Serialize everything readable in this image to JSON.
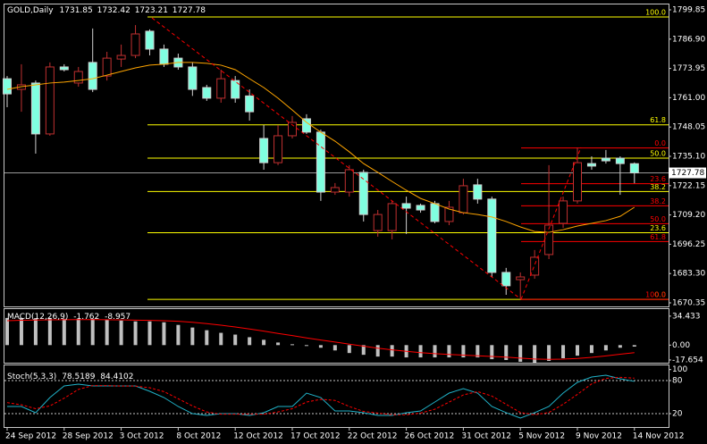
{
  "chart_data": [
    {
      "type": "candlestick",
      "title": "GOLD,Daily",
      "categories": [
        "24 Sep 2012",
        null,
        null,
        null,
        "28 Sep 2012",
        null,
        null,
        null,
        "3 Oct 2012",
        null,
        null,
        null,
        "8 Oct 2012",
        null,
        null,
        null,
        "12 Oct 2012",
        null,
        null,
        null,
        "17 Oct 2012",
        null,
        null,
        null,
        "22 Oct 2012",
        null,
        null,
        null,
        "26 Oct 2012",
        null,
        null,
        null,
        "31 Oct 2012",
        null,
        null,
        null,
        "5 Nov 2012",
        null,
        null,
        null,
        "9 Nov 2012",
        null,
        null,
        null,
        "14 Nov 2012"
      ],
      "open": [
        1769.4,
        1764.7,
        1767.5,
        1745.0,
        1774.6,
        1767.5,
        1776.6,
        1770.6,
        1778.1,
        1779.7,
        1790.4,
        1782.5,
        1778.5,
        1774.6,
        1765.5,
        1760.8,
        1768.6,
        1761.8,
        1743.0,
        1732.3,
        1744.2,
        1751.7,
        1745.8,
        1719.3,
        1719.3,
        1728.0,
        1702.3,
        1702.3,
        1714.2,
        1713.4,
        1714.2,
        1706.3,
        1710.2,
        1722.5,
        1716.2,
        1683.8,
        1680.6,
        1682.6,
        1691.7,
        1705.5,
        1715.4,
        1731.9,
        1734.3,
        1734.3,
        1731.85
      ],
      "high": [
        1770.6,
        1775.8,
        1768.6,
        1776.6,
        1775.8,
        1774.6,
        1791.6,
        1781.3,
        1784.5,
        1793.1,
        1791.2,
        1784.5,
        1780.5,
        1776.6,
        1766.7,
        1773.4,
        1770.6,
        1764.7,
        1748.9,
        1748.9,
        1752.9,
        1753.7,
        1746.9,
        1723.3,
        1731.2,
        1729.2,
        1711.4,
        1715.4,
        1717.3,
        1714.2,
        1715.4,
        1715.4,
        1725.2,
        1725.2,
        1717.3,
        1685.8,
        1683.8,
        1693.7,
        1731.2,
        1717.3,
        1739.0,
        1735.1,
        1737.9,
        1735.1,
        1732.42
      ],
      "low": [
        1756.8,
        1754.8,
        1736.3,
        1744.2,
        1772.6,
        1765.9,
        1763.5,
        1768.6,
        1774.6,
        1778.5,
        1779.7,
        1774.6,
        1773.4,
        1761.8,
        1759.6,
        1758.8,
        1758.8,
        1750.9,
        1729.2,
        1731.2,
        1743.0,
        1745.0,
        1715.4,
        1718.1,
        1717.3,
        1706.3,
        1699.6,
        1698.4,
        1700.8,
        1710.2,
        1705.5,
        1704.7,
        1709.4,
        1714.2,
        1681.8,
        1673.9,
        1671.9,
        1681.0,
        1689.7,
        1703.5,
        1714.2,
        1729.2,
        1731.9,
        1718.1,
        1723.21
      ],
      "close": [
        1762.7,
        1766.7,
        1745.0,
        1774.6,
        1773.4,
        1772.6,
        1764.7,
        1778.5,
        1779.7,
        1789.2,
        1782.5,
        1775.8,
        1774.6,
        1764.7,
        1760.8,
        1769.4,
        1760.8,
        1754.8,
        1732.3,
        1744.2,
        1750.1,
        1745.8,
        1719.3,
        1721.3,
        1729.2,
        1709.4,
        1709.4,
        1714.2,
        1712.2,
        1711.4,
        1706.3,
        1712.6,
        1722.1,
        1716.2,
        1683.8,
        1677.9,
        1681.8,
        1690.5,
        1704.7,
        1715.4,
        1732.3,
        1730.8,
        1733.1,
        1731.9,
        1727.78
      ],
      "up_color": "#000000",
      "up_line": "#c03030",
      "down_color": "#80ffe0",
      "down_line": "#d0d0d0",
      "ma_values": [
        1764.7,
        1765.9,
        1766.7,
        1767.5,
        1767.9,
        1768.6,
        1769.4,
        1771.0,
        1772.6,
        1774.2,
        1775.4,
        1775.8,
        1776.6,
        1776.6,
        1776.2,
        1775.4,
        1773.4,
        1769.4,
        1765.5,
        1760.8,
        1755.6,
        1750.1,
        1745.8,
        1741.8,
        1737.1,
        1731.9,
        1728.0,
        1724.0,
        1720.1,
        1716.5,
        1714.2,
        1711.8,
        1710.2,
        1709.4,
        1708.3,
        1706.3,
        1703.9,
        1701.9,
        1701.5,
        1702.7,
        1704.3,
        1705.5,
        1706.7,
        1708.6,
        1712.6
      ],
      "ma_color": "#ffa500",
      "fibonacci": [
        {
          "color": "#ffff00",
          "high": 1796.7,
          "low": 1671.9,
          "reversed": false,
          "levels": [
            {
              "value": 100,
              "label": "100.0"
            },
            {
              "value": 61.8,
              "label": "61.8"
            },
            {
              "value": 50,
              "label": "50.0"
            },
            {
              "value": 38.2,
              "label": "38.2"
            },
            {
              "value": 23.6,
              "label": "23.6"
            },
            {
              "value": 0,
              "label": "0.0"
            }
          ]
        },
        {
          "color": "#ff0000",
          "high": 1738.8,
          "low": 1671.9,
          "reversed": true,
          "levels": [
            {
              "value": 0,
              "label": "0.0"
            },
            {
              "value": 23.6,
              "label": "23.6"
            },
            {
              "value": 38.2,
              "label": "38.2"
            },
            {
              "value": 50,
              "label": "50.0"
            },
            {
              "value": 61.8,
              "label": "61.8"
            },
            {
              "value": 100,
              "label": "100.0"
            }
          ]
        }
      ],
      "ylim": [
        1668.77,
        1802.22
      ],
      "yticks": [
        1799.85,
        {
          "value": 1786.9,
          "label": "1786.90"
        },
        1773.95,
        {
          "value": 1761,
          "label": "1761.00"
        },
        1748.05,
        {
          "value": 1735.1,
          "label": "1735.10"
        },
        1722.15,
        {
          "value": 1709.2,
          "label": "1709.20"
        },
        1696.25,
        {
          "value": 1683.3,
          "label": "1683.30"
        },
        1670.35
      ]
    },
    {
      "type": "macd",
      "title": "MACD(12,26,9)",
      "values": [
        32.3,
        32.3,
        32.0,
        32.3,
        31.3,
        31.3,
        31.3,
        30.2,
        29.2,
        28.2,
        28.2,
        27.1,
        24.0,
        20.9,
        17.7,
        14.6,
        12.5,
        9.4,
        6.3,
        3.1,
        1.0,
        -1.0,
        -3.1,
        -6.3,
        -9.4,
        -11.5,
        -13.6,
        -13.6,
        -14.6,
        -14.6,
        -14.6,
        -14.6,
        -14.6,
        -14.6,
        -16.7,
        -17.7,
        -19.8,
        -20.9,
        -18.8,
        -15.6,
        -12.5,
        -9.4,
        -6.3,
        -3.1,
        -1.762
      ],
      "color": "#c0c0c0",
      "signal_values": [
        29.0,
        29.5,
        29.8,
        30.0,
        30.2,
        30.3,
        30.3,
        30.2,
        30.0,
        29.7,
        29.4,
        29.0,
        28.3,
        27.2,
        25.6,
        23.7,
        21.6,
        19.2,
        16.6,
        13.9,
        11.3,
        8.6,
        6.1,
        3.7,
        1.1,
        -1.2,
        -3.6,
        -5.6,
        -7.4,
        -8.9,
        -10.2,
        -11.1,
        -11.9,
        -12.7,
        -13.5,
        -14.3,
        -15.4,
        -16.5,
        -16.9,
        -16.6,
        -15.8,
        -14.5,
        -12.8,
        -10.8,
        -8.957
      ],
      "signal_color": "#ff0000",
      "ylim": [
        -20.9,
        42.8
      ],
      "yticks": [
        34.433,
        {
          "value": 0,
          "label": "0.00"
        },
        -17.654
      ]
    },
    {
      "type": "stochastic",
      "title": "Stoch(5,3,3)",
      "series": [
        {
          "color": "#20b2c8",
          "values": [
            33.0,
            33.0,
            21.7,
            49.2,
            70.3,
            73.5,
            70.3,
            70.3,
            70.3,
            70.3,
            60.6,
            49.2,
            33.0,
            20.0,
            16.8,
            20.0,
            20.0,
            16.8,
            21.7,
            33.0,
            33.0,
            57.3,
            49.2,
            24.9,
            24.9,
            21.7,
            16.8,
            16.8,
            21.7,
            24.9,
            41.1,
            57.3,
            65.4,
            57.3,
            33.0,
            21.7,
            11.9,
            21.7,
            33.0,
            57.3,
            76.8,
            86.5,
            89.7,
            83.2,
            78.5189
          ]
        },
        {
          "color": "#ff0000",
          "dashed": true,
          "values": [
            40,
            36,
            29,
            34,
            48,
            64,
            71,
            71,
            70,
            70,
            67,
            60,
            47,
            34,
            23,
            19,
            19,
            19,
            19,
            23,
            29,
            41,
            46,
            44,
            33,
            24,
            21,
            18,
            18,
            21,
            28,
            41,
            54,
            60,
            52,
            37,
            22,
            18,
            22,
            37,
            55,
            74,
            84,
            86,
            84.4102
          ]
        }
      ],
      "levels": [
        80,
        20
      ],
      "ylim": [
        -4.3,
        107.6
      ],
      "yticks": [
        100,
        80,
        20
      ]
    }
  ]
}
